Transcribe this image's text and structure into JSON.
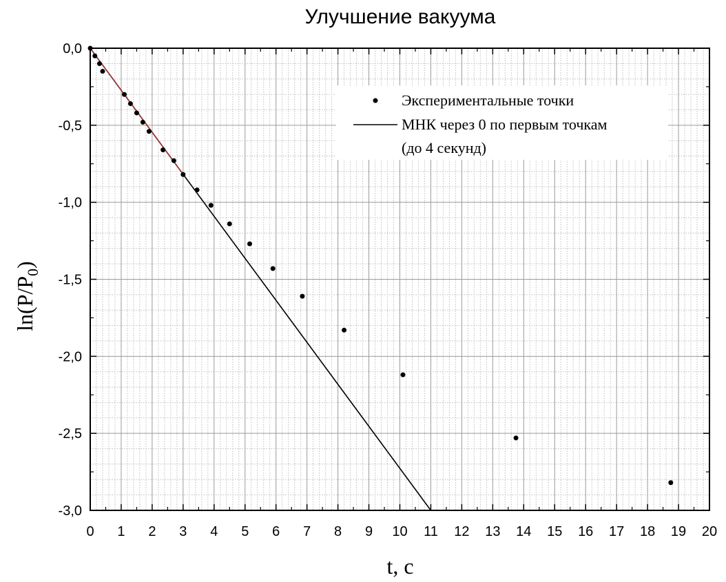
{
  "chart_data": {
    "type": "scatter",
    "title": "Улучшение вакуума",
    "xlabel": "t, c",
    "ylabel_main": "ln(P/P",
    "ylabel_sub": "0",
    "ylabel_close": ")",
    "xlim": [
      0,
      20
    ],
    "ylim": [
      -3.0,
      0.0
    ],
    "x_ticks": [
      0,
      1,
      2,
      3,
      4,
      5,
      6,
      7,
      8,
      9,
      10,
      11,
      12,
      13,
      14,
      15,
      16,
      17,
      18,
      19,
      20
    ],
    "x_tick_labels": [
      "0",
      "1",
      "2",
      "3",
      "4",
      "5",
      "6",
      "7",
      "8",
      "9",
      "10",
      "11",
      "12",
      "13",
      "14",
      "15",
      "16",
      "17",
      "18",
      "19",
      "20"
    ],
    "y_ticks": [
      0.0,
      -0.5,
      -1.0,
      -1.5,
      -2.0,
      -2.5,
      -3.0
    ],
    "y_tick_labels": [
      "0,0",
      "-0,5",
      "-1,0",
      "-1,5",
      "-2,0",
      "-2,5",
      "-3,0"
    ],
    "grid": true,
    "legend_position": "top-right",
    "series": [
      {
        "name": "Экспериментальные точки",
        "kind": "points",
        "color": "#000000",
        "x": [
          0.0,
          0.15,
          0.3,
          0.4,
          1.1,
          1.3,
          1.5,
          1.7,
          1.9,
          2.35,
          2.7,
          3.0,
          3.45,
          3.9,
          4.5,
          5.15,
          5.9,
          6.85,
          8.2,
          10.1,
          13.75,
          18.75
        ],
        "y": [
          0.0,
          -0.05,
          -0.1,
          -0.15,
          -0.3,
          -0.36,
          -0.42,
          -0.48,
          -0.54,
          -0.66,
          -0.73,
          -0.82,
          -0.92,
          -1.02,
          -1.14,
          -1.27,
          -1.43,
          -1.61,
          -1.83,
          -2.12,
          -2.53,
          -2.82
        ]
      },
      {
        "name": "МНК через 0 по первым точкам",
        "name_line2": "(до 4 секунд)",
        "kind": "line",
        "color": "#000000",
        "slope": -0.2725,
        "x": [
          0,
          11.0
        ],
        "y": [
          0,
          -3.0
        ]
      }
    ],
    "fit_overlay": {
      "color": "#b03030",
      "x": [
        0,
        3.0
      ],
      "y": [
        0,
        -0.8175
      ]
    }
  }
}
